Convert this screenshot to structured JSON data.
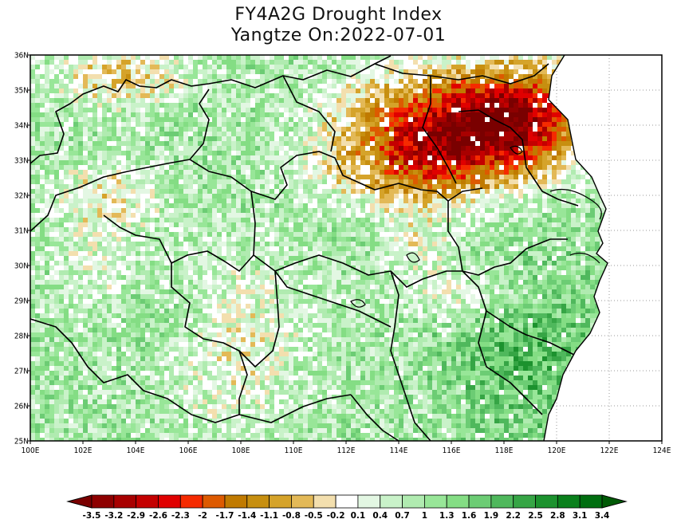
{
  "title": {
    "line1": "FY4A2G Drought Index",
    "line2": "Yangtze On:2022-07-01"
  },
  "axes": {
    "lon_labels": [
      "100E",
      "102E",
      "104E",
      "106E",
      "108E",
      "110E",
      "112E",
      "114E",
      "116E",
      "118E",
      "120E",
      "122E",
      "124E"
    ],
    "lat_labels": [
      "25N",
      "26N",
      "27N",
      "28N",
      "29N",
      "30N",
      "31N",
      "32N",
      "33N",
      "34N",
      "35N",
      "36N"
    ],
    "lon_range": [
      100,
      124
    ],
    "lat_range": [
      25,
      36
    ]
  },
  "colorbar": {
    "labels": [
      "-3.5",
      "-3.2",
      "-2.9",
      "-2.6",
      "-2.3",
      "-2",
      "-1.7",
      "-1.4",
      "-1.1",
      "-0.8",
      "-0.5",
      "-0.2",
      "0.1",
      "0.4",
      "0.7",
      "1",
      "1.3",
      "1.6",
      "1.9",
      "2.2",
      "2.5",
      "2.8",
      "3.1",
      "3.4"
    ],
    "colors": [
      "#7a0000",
      "#8e0000",
      "#a80000",
      "#c40000",
      "#e00000",
      "#f52a00",
      "#dd5a00",
      "#c07a00",
      "#c78f10",
      "#d5a32a",
      "#e3b957",
      "#f3dfae",
      "#ffffff",
      "#e3f7e3",
      "#c9f2c9",
      "#b0ebb0",
      "#98e698",
      "#84dd84",
      "#6ccc74",
      "#4fb85c",
      "#36a545",
      "#1c922e",
      "#0a801c",
      "#006e10",
      "#005a06"
    ]
  }
}
